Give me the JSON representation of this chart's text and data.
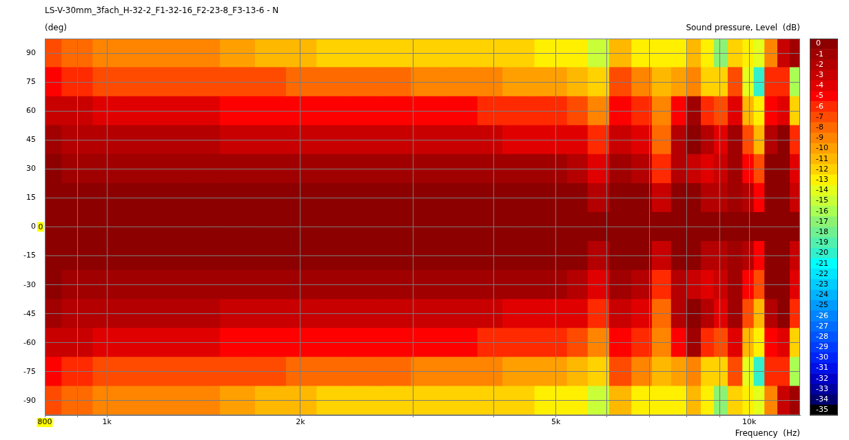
{
  "chart_data": {
    "type": "heatmap",
    "title": "LS-V-30mm_3fach_H-32-2_F1-32-16_F2-23-8_F3-13-6 - N",
    "xlabel": "Frequency  (Hz)",
    "ylabel": "(deg)",
    "clabel": "Sound pressure, Level  (dB)",
    "x": [
      800,
      900,
      1000,
      1120,
      1250,
      1400,
      1600,
      1800,
      2000,
      2240,
      2500,
      2800,
      3150,
      3550,
      4000,
      4250,
      4500,
      4750,
      5000,
      5400,
      5800,
      6300,
      6800,
      7300,
      7800,
      8200,
      8600,
      9000,
      9500,
      10000,
      10300,
      10800,
      11300,
      11800
    ],
    "y_categories": [
      "90",
      "75",
      "60",
      "45",
      "30",
      "15",
      "0",
      "-15",
      "-30",
      "-45",
      "-60",
      "-75",
      "-90"
    ],
    "cells": [
      [
        -7,
        -8,
        -9,
        -9,
        -9,
        -9,
        -10,
        -11,
        -11,
        -12,
        -12,
        -12,
        -12,
        -12,
        -12,
        -12,
        -12,
        -13,
        -13,
        -13,
        -15,
        -11,
        -13,
        -13,
        -13,
        -11,
        -13,
        -17,
        -12,
        -13,
        -14,
        -9,
        -3,
        -1
      ],
      [
        -5,
        -6,
        -7,
        -7,
        -7,
        -7,
        -7,
        -7,
        -8,
        -8,
        -8,
        -8,
        -9,
        -9,
        -9,
        -10,
        -10,
        -10,
        -10,
        -11,
        -12,
        -7,
        -9,
        -11,
        -10,
        -9,
        -12,
        -12,
        -7,
        -14,
        -20,
        -6,
        -6,
        -16
      ],
      [
        -3,
        -3,
        -4,
        -4,
        -4,
        -4,
        -5,
        -5,
        -5,
        -5,
        -5,
        -5,
        -5,
        -5,
        -6,
        -6,
        -6,
        -6,
        -6,
        -7,
        -9,
        -5,
        -6,
        -9,
        -5,
        -1,
        -6,
        -7,
        -4,
        -11,
        -13,
        -5,
        -4,
        -12
      ],
      [
        -1,
        -2,
        -2,
        -2,
        -2,
        -2,
        -3,
        -3,
        -3,
        -3,
        -3,
        -3,
        -3,
        -3,
        -3,
        -4,
        -4,
        -4,
        -4,
        -4,
        -6,
        -3,
        -4,
        -8,
        -2,
        0,
        -2,
        -4,
        -1,
        -7,
        -11,
        -2,
        0,
        -6
      ],
      [
        0,
        -1,
        -1,
        -1,
        -1,
        -1,
        -1,
        -1,
        -1,
        -1,
        -1,
        -1,
        -1,
        -1,
        -1,
        -1,
        -1,
        -1,
        -1,
        -2,
        -4,
        -1,
        -2,
        -6,
        -2,
        -3,
        -4,
        -3,
        -1,
        -5,
        -7,
        0,
        0,
        -4
      ],
      [
        0,
        0,
        0,
        0,
        0,
        0,
        0,
        0,
        0,
        0,
        0,
        0,
        0,
        0,
        0,
        0,
        0,
        0,
        0,
        0,
        -2,
        0,
        0,
        -3,
        0,
        0,
        -2,
        -2,
        -1,
        -2,
        -5,
        0,
        0,
        -3
      ],
      [
        0,
        0,
        0,
        0,
        0,
        0,
        0,
        0,
        0,
        0,
        0,
        0,
        0,
        0,
        0,
        0,
        0,
        0,
        0,
        0,
        0,
        0,
        0,
        0,
        0,
        0,
        0,
        0,
        0,
        0,
        0,
        0,
        0,
        0
      ],
      [
        0,
        0,
        0,
        0,
        0,
        0,
        0,
        0,
        0,
        0,
        0,
        0,
        0,
        0,
        0,
        0,
        0,
        0,
        0,
        0,
        -2,
        0,
        0,
        -3,
        0,
        0,
        -2,
        -2,
        -1,
        -2,
        -5,
        0,
        0,
        -3
      ],
      [
        0,
        -1,
        -1,
        -1,
        -1,
        -1,
        -1,
        -1,
        -1,
        -1,
        -1,
        -1,
        -1,
        -1,
        -1,
        -1,
        -1,
        -1,
        -1,
        -2,
        -4,
        -1,
        -2,
        -6,
        -2,
        -3,
        -4,
        -3,
        -1,
        -5,
        -7,
        0,
        0,
        -4
      ],
      [
        -1,
        -2,
        -2,
        -2,
        -2,
        -2,
        -3,
        -3,
        -3,
        -3,
        -3,
        -3,
        -3,
        -3,
        -3,
        -4,
        -4,
        -4,
        -4,
        -4,
        -6,
        -3,
        -4,
        -8,
        -2,
        0,
        -2,
        -4,
        -1,
        -7,
        -11,
        -2,
        0,
        -6
      ],
      [
        -3,
        -3,
        -4,
        -4,
        -4,
        -4,
        -5,
        -5,
        -5,
        -5,
        -5,
        -5,
        -5,
        -5,
        -6,
        -6,
        -6,
        -6,
        -6,
        -7,
        -9,
        -5,
        -6,
        -9,
        -5,
        -1,
        -6,
        -7,
        -4,
        -11,
        -13,
        -5,
        -4,
        -12
      ],
      [
        -5,
        -6,
        -7,
        -7,
        -7,
        -7,
        -7,
        -7,
        -8,
        -8,
        -8,
        -8,
        -9,
        -9,
        -9,
        -10,
        -10,
        -10,
        -10,
        -11,
        -12,
        -7,
        -9,
        -11,
        -10,
        -9,
        -12,
        -12,
        -7,
        -14,
        -20,
        -6,
        -6,
        -16
      ],
      [
        -7,
        -8,
        -9,
        -9,
        -9,
        -9,
        -10,
        -11,
        -11,
        -12,
        -12,
        -12,
        -12,
        -12,
        -12,
        -12,
        -12,
        -13,
        -13,
        -13,
        -15,
        -11,
        -13,
        -13,
        -13,
        -11,
        -13,
        -17,
        -12,
        -13,
        -14,
        -9,
        -3,
        -1
      ]
    ],
    "clim": [
      -35,
      0
    ],
    "cticks": [
      0,
      -1,
      -2,
      -3,
      -4,
      -5,
      -6,
      -7,
      -8,
      -9,
      -10,
      -11,
      -12,
      -13,
      -14,
      -15,
      -16,
      -17,
      -18,
      -19,
      -20,
      -21,
      -22,
      -23,
      -24,
      -25,
      -26,
      -27,
      -28,
      -29,
      -30,
      -31,
      -32,
      -33,
      -34,
      -35
    ],
    "xlim": [
      800,
      12000
    ],
    "xticks": [
      800,
      {
        "value": 900,
        "label": null
      },
      {
        "value": 1000,
        "label": "1k"
      },
      {
        "value": 2000,
        "label": "2k"
      },
      {
        "value": 3000,
        "label": null
      },
      {
        "value": 4000,
        "label": null
      },
      {
        "value": 5000,
        "label": "5k"
      },
      {
        "value": 6000,
        "label": null
      },
      {
        "value": 7000,
        "label": null
      },
      {
        "value": 8000,
        "label": null
      },
      {
        "value": 9000,
        "label": null
      },
      {
        "value": 10000,
        "label": "10k"
      }
    ],
    "log": "x",
    "grid": true,
    "annotations": [
      "0"
    ]
  }
}
